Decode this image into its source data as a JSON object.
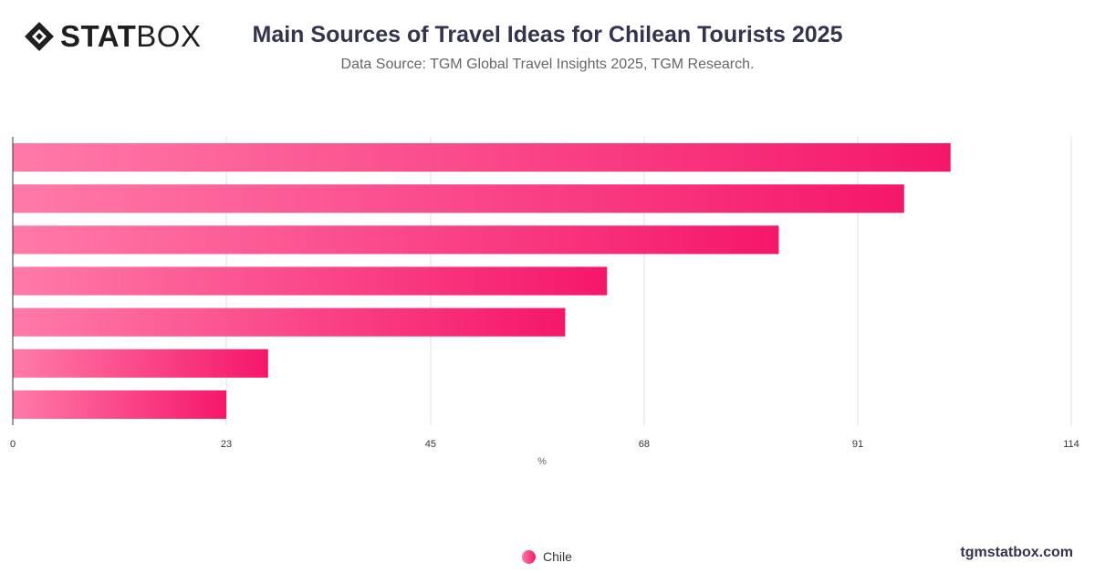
{
  "header": {
    "logo_stat": "STAT",
    "logo_box": "BOX",
    "title": "Main Sources of Travel Ideas for Chilean Tourists 2025",
    "subtitle": "Data Source: TGM Global Travel Insights 2025, TGM Research."
  },
  "legend": {
    "label": "Chile"
  },
  "footer": {
    "site": "tgmstatbox.com"
  },
  "colors": {
    "bar_start": "#ff7aa8",
    "bar_end": "#f5176a",
    "grid": "#e0e0e0",
    "axis": "#333333",
    "title": "#34344e"
  },
  "chart_data": {
    "type": "bar",
    "orientation": "horizontal",
    "title": "Main Sources of Travel Ideas for Chilean Tourists 2025",
    "xlabel": "%",
    "ylabel": "",
    "categories": [
      "",
      "",
      "",
      "",
      "",
      "",
      ""
    ],
    "series": [
      {
        "name": "Chile",
        "values": [
          101,
          96,
          82.5,
          64,
          59.5,
          27.5,
          23
        ]
      }
    ],
    "xlim": [
      0,
      114
    ],
    "x_ticks": [
      0,
      23,
      45,
      68,
      91,
      114
    ],
    "grid": true,
    "legend_position": "bottom"
  }
}
